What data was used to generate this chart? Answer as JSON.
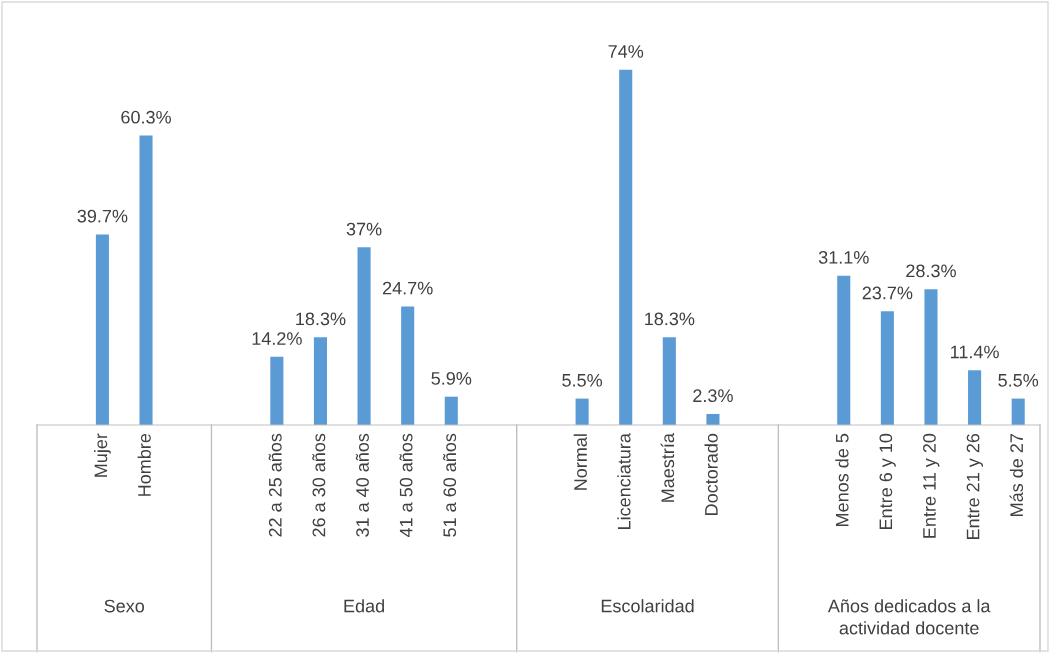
{
  "chart_data": {
    "type": "bar",
    "categories": [
      null,
      "Mujer",
      "Hombre",
      null,
      null,
      "22 a 25 años",
      "26 a 30 años",
      "31 a 40 años",
      "41 a 50 años",
      "51 a 60 años",
      null,
      null,
      "Normal",
      "Licenciatura",
      "Maestría",
      "Doctorado",
      null,
      null,
      "Menos de 5",
      "Entre 6 y 10",
      "Entre 11 y 20",
      "Entre 21 y 26",
      "Más de 27"
    ],
    "values": [
      null,
      39.7,
      60.3,
      null,
      null,
      14.2,
      18.3,
      37,
      24.7,
      5.9,
      null,
      null,
      5.5,
      74,
      18.3,
      2.3,
      null,
      null,
      31.1,
      23.7,
      28.3,
      11.4,
      5.5
    ],
    "value_labels": [
      null,
      "39.7%",
      "60.3%",
      null,
      null,
      "14.2%",
      "18.3%",
      "37%",
      "24.7%",
      "5.9%",
      null,
      null,
      "5.5%",
      "74%",
      "18.3%",
      "2.3%",
      null,
      null,
      "31.1%",
      "23.7%",
      "28.3%",
      "11.4%",
      "5.5%"
    ],
    "color": "#5b9bd5",
    "annotations": [
      "Sexo",
      "Edad",
      "Escolaridad",
      "Años dedicados a la\nactividad docente"
    ],
    "legend": false
  }
}
